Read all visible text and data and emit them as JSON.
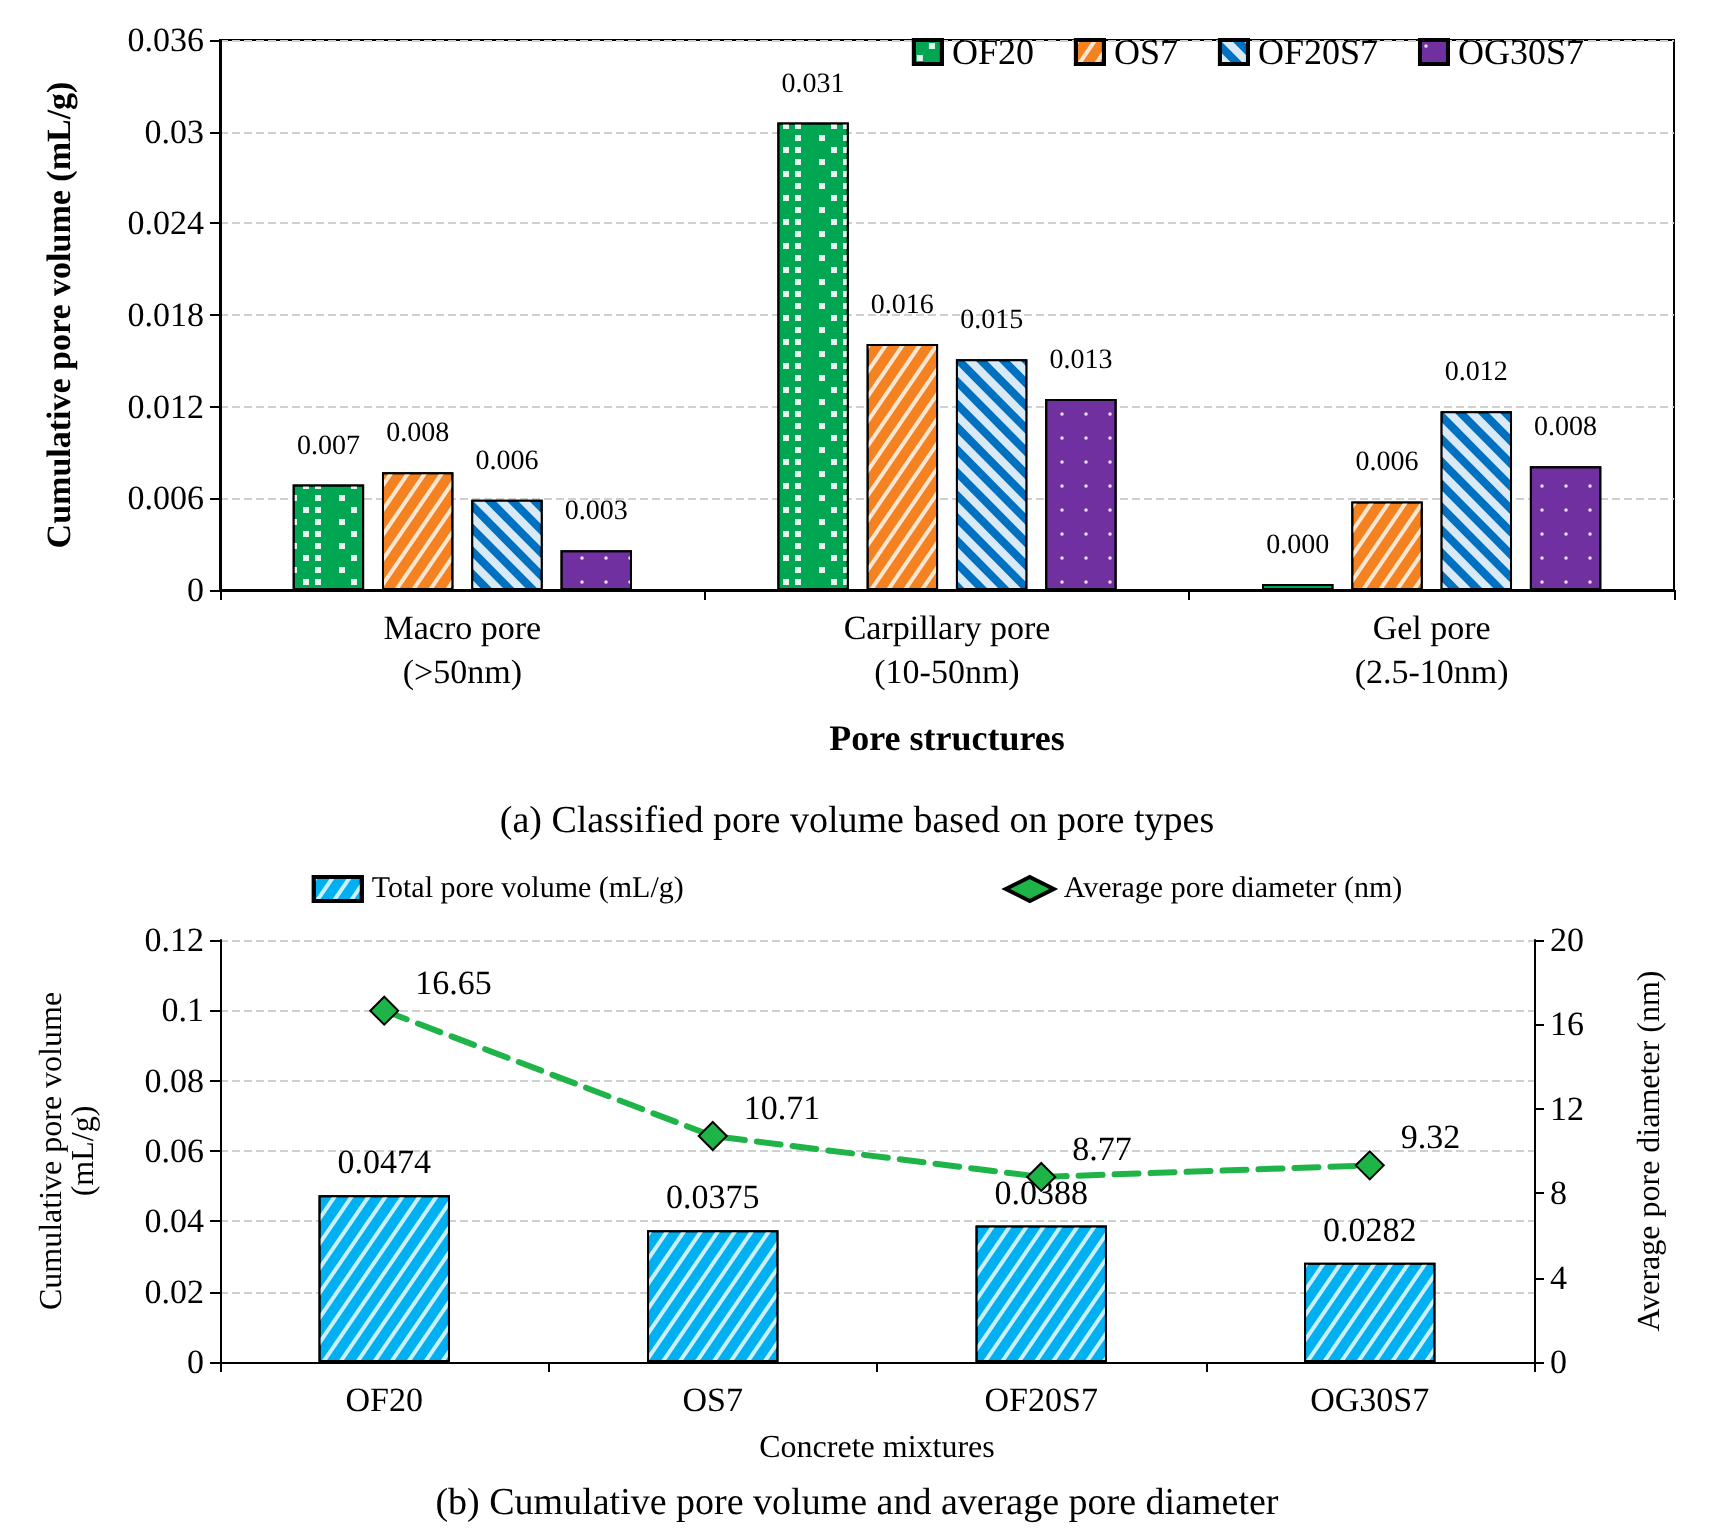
{
  "chart_data": [
    {
      "type": "bar",
      "title": "(a) Classified pore volume based on pore types",
      "xlabel": "Pore structures",
      "ylabel": "Cumulative pore volume (mL/g)",
      "categories": [
        "Macro pore\n(>50nm)",
        "Carpillary pore\n(10-50nm)",
        "Gel pore\n(2.5-10nm)"
      ],
      "series": [
        {
          "name": "OF20",
          "color": "#00a651",
          "values": [
            0.0069,
            0.0306,
            0.0004
          ],
          "value_labels": [
            "0.007",
            "0.031",
            "0.000"
          ]
        },
        {
          "name": "OS7",
          "color": "#f58220",
          "values": [
            0.0077,
            0.0161,
            0.0058
          ],
          "value_labels": [
            "0.008",
            "0.016",
            "0.006"
          ]
        },
        {
          "name": "OF20S7",
          "color": "#0070c0",
          "values": [
            0.0059,
            0.0151,
            0.0117
          ],
          "value_labels": [
            "0.006",
            "0.015",
            "0.012"
          ]
        },
        {
          "name": "OG30S7",
          "color": "#7030a0",
          "values": [
            0.0026,
            0.0125,
            0.0081
          ],
          "value_labels": [
            "0.003",
            "0.013",
            "0.008"
          ]
        }
      ],
      "ylim": [
        0,
        0.036
      ],
      "yticks": [
        0,
        0.006,
        0.012,
        0.018,
        0.024,
        0.03,
        0.036
      ],
      "grid": "y",
      "legend": "top right"
    },
    {
      "type": "bar",
      "title": "(b) Cumulative pore volume and average pore diameter",
      "xlabel": "Concrete mixtures",
      "ylabel": "Cumulative pore volume\n(mL/g)",
      "y2label": "Average pore diameter (nm)",
      "categories": [
        "OF20",
        "OS7",
        "OF20S7",
        "OG30S7"
      ],
      "series": [
        {
          "name": "Total pore volume (mL/g)",
          "color": "#00b0f0",
          "values": [
            0.0474,
            0.0375,
            0.0388,
            0.0282
          ]
        },
        {
          "name": "Average pore diameter (nm)",
          "type": "line",
          "axis": "y2",
          "color": "#1fb448",
          "values": [
            16.65,
            10.71,
            8.77,
            9.32
          ]
        }
      ],
      "ylim": [
        0,
        0.12
      ],
      "yticks": [
        0,
        0.02,
        0.04,
        0.06,
        0.08,
        0.1,
        0.12
      ],
      "y2lim": [
        0,
        20
      ],
      "y2ticks": [
        0,
        4,
        8,
        12,
        16,
        20
      ],
      "grid": "y",
      "legend": "top",
      "data_labels": true,
      "marker": "diamond",
      "line_style": "dashed"
    }
  ]
}
